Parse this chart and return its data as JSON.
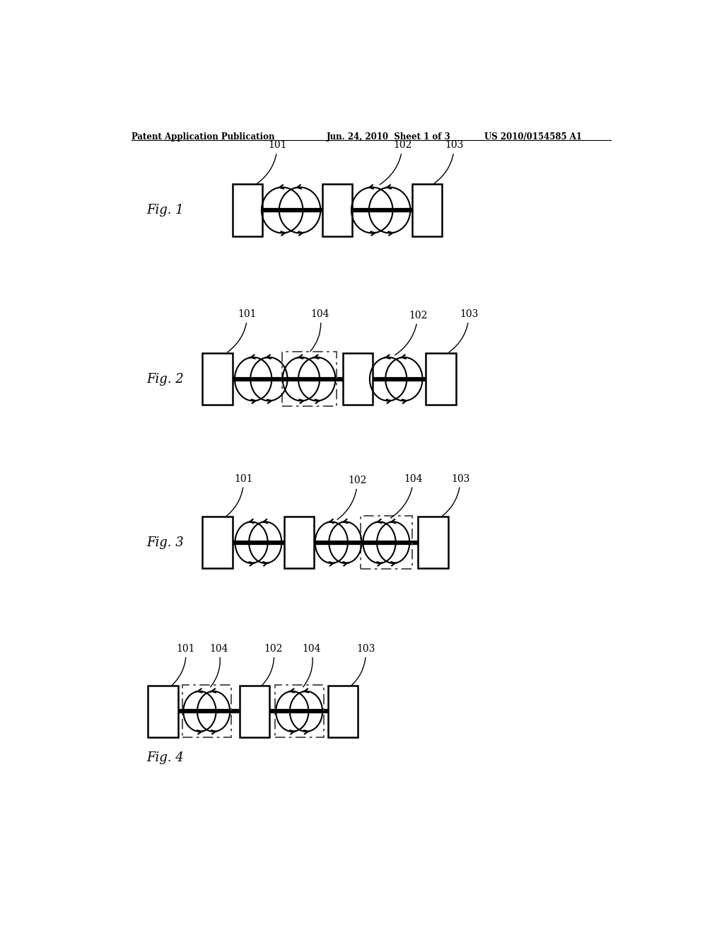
{
  "header_left": "Patent Application Publication",
  "header_center": "Jun. 24, 2010  Sheet 1 of 3",
  "header_right": "US 2010/0154585 A1",
  "background_color": "#ffffff",
  "line_color": "#000000",
  "dashed_color": "#444444"
}
